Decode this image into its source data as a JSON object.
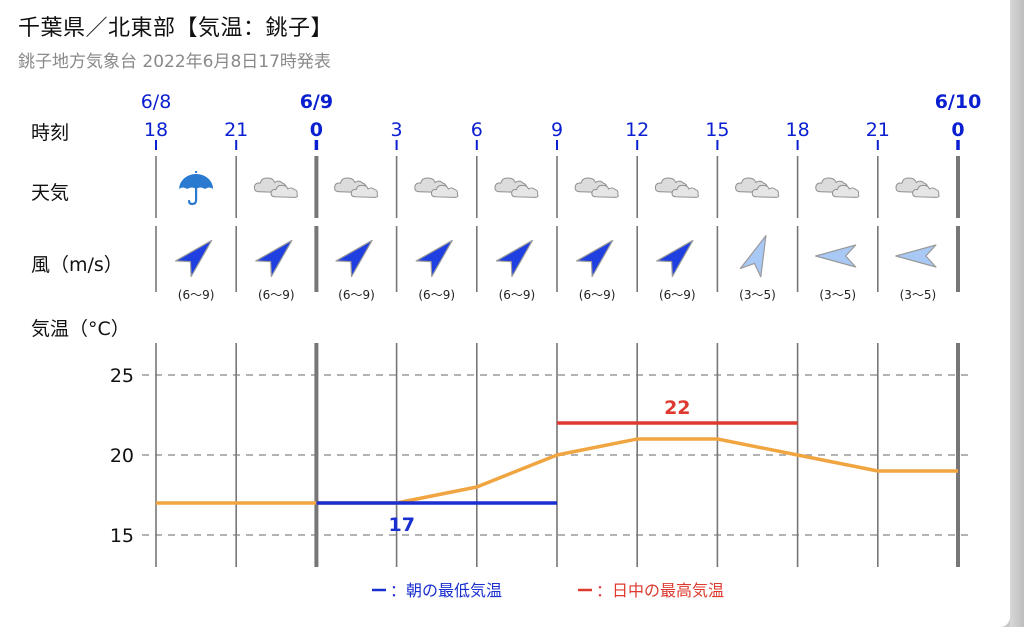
{
  "header": {
    "title": "千葉県／北東部【気温：銚子】",
    "subtitle": "銚子地方気象台 2022年6月8日17時発表"
  },
  "row_labels": {
    "time": "時刻",
    "weather": "天気",
    "wind": "風（m/s）",
    "temp": "気温（°C）"
  },
  "date_labels": [
    {
      "text": "6/8",
      "col": 0,
      "bold": false
    },
    {
      "text": "6/9",
      "col": 2,
      "bold": true
    },
    {
      "text": "6/10",
      "col": 10,
      "bold": true
    }
  ],
  "hours": [
    "18",
    "21",
    "0",
    "3",
    "6",
    "9",
    "12",
    "15",
    "18",
    "21",
    "0"
  ],
  "hour_bold": [
    false,
    false,
    true,
    false,
    false,
    false,
    false,
    false,
    false,
    false,
    true
  ],
  "weather_icons": [
    "umbrella-icon",
    "cloud-icon",
    "cloud-icon",
    "cloud-icon",
    "cloud-icon",
    "cloud-icon",
    "cloud-icon",
    "cloud-icon",
    "cloud-icon",
    "cloud-icon"
  ],
  "winds": [
    {
      "dir": "SW",
      "range": "(6〜9)",
      "strength": "strong"
    },
    {
      "dir": "SW",
      "range": "(6〜9)",
      "strength": "strong"
    },
    {
      "dir": "SW",
      "range": "(6〜9)",
      "strength": "strong"
    },
    {
      "dir": "SW",
      "range": "(6〜9)",
      "strength": "strong"
    },
    {
      "dir": "SW",
      "range": "(6〜9)",
      "strength": "strong"
    },
    {
      "dir": "SW",
      "range": "(6〜9)",
      "strength": "strong"
    },
    {
      "dir": "SW",
      "range": "(6〜9)",
      "strength": "strong"
    },
    {
      "dir": "SSW",
      "range": "(3〜5)",
      "strength": "weak"
    },
    {
      "dir": "E",
      "range": "(3〜5)",
      "strength": "weak"
    },
    {
      "dir": "E",
      "range": "(3〜5)",
      "strength": "weak"
    }
  ],
  "colors": {
    "accent_blue": "#0a1fcf",
    "wind_strong": "#1f3fe0",
    "wind_weak": "#a8c8f5",
    "temp_line": "#f0a540",
    "min_line": "#1a2fd0",
    "max_line": "#de3a30",
    "umbrella": "#2a7ad0"
  },
  "chart_data": {
    "type": "line",
    "title": "",
    "xlabel": "",
    "ylabel": "気温（°C）",
    "x": [
      "18",
      "21",
      "0",
      "3",
      "6",
      "9",
      "12",
      "15",
      "18",
      "21",
      "0"
    ],
    "ylim": [
      13,
      27
    ],
    "yticks": [
      15,
      20,
      25
    ],
    "grid": true,
    "series": [
      {
        "values": [
          17,
          17,
          17,
          17,
          18,
          20,
          21,
          21,
          20,
          19,
          19
        ]
      }
    ],
    "annotations": [
      {
        "label": "17",
        "value": 17,
        "from": 2,
        "to": 5,
        "kind": "min"
      },
      {
        "label": "22",
        "value": 22,
        "from": 5,
        "to": 8,
        "kind": "max"
      }
    ],
    "legend": [
      {
        "label": "：朝の最低気温",
        "kind": "min"
      },
      {
        "label": "：日中の最高気温",
        "kind": "max"
      }
    ],
    "legend_position": "bottom"
  }
}
